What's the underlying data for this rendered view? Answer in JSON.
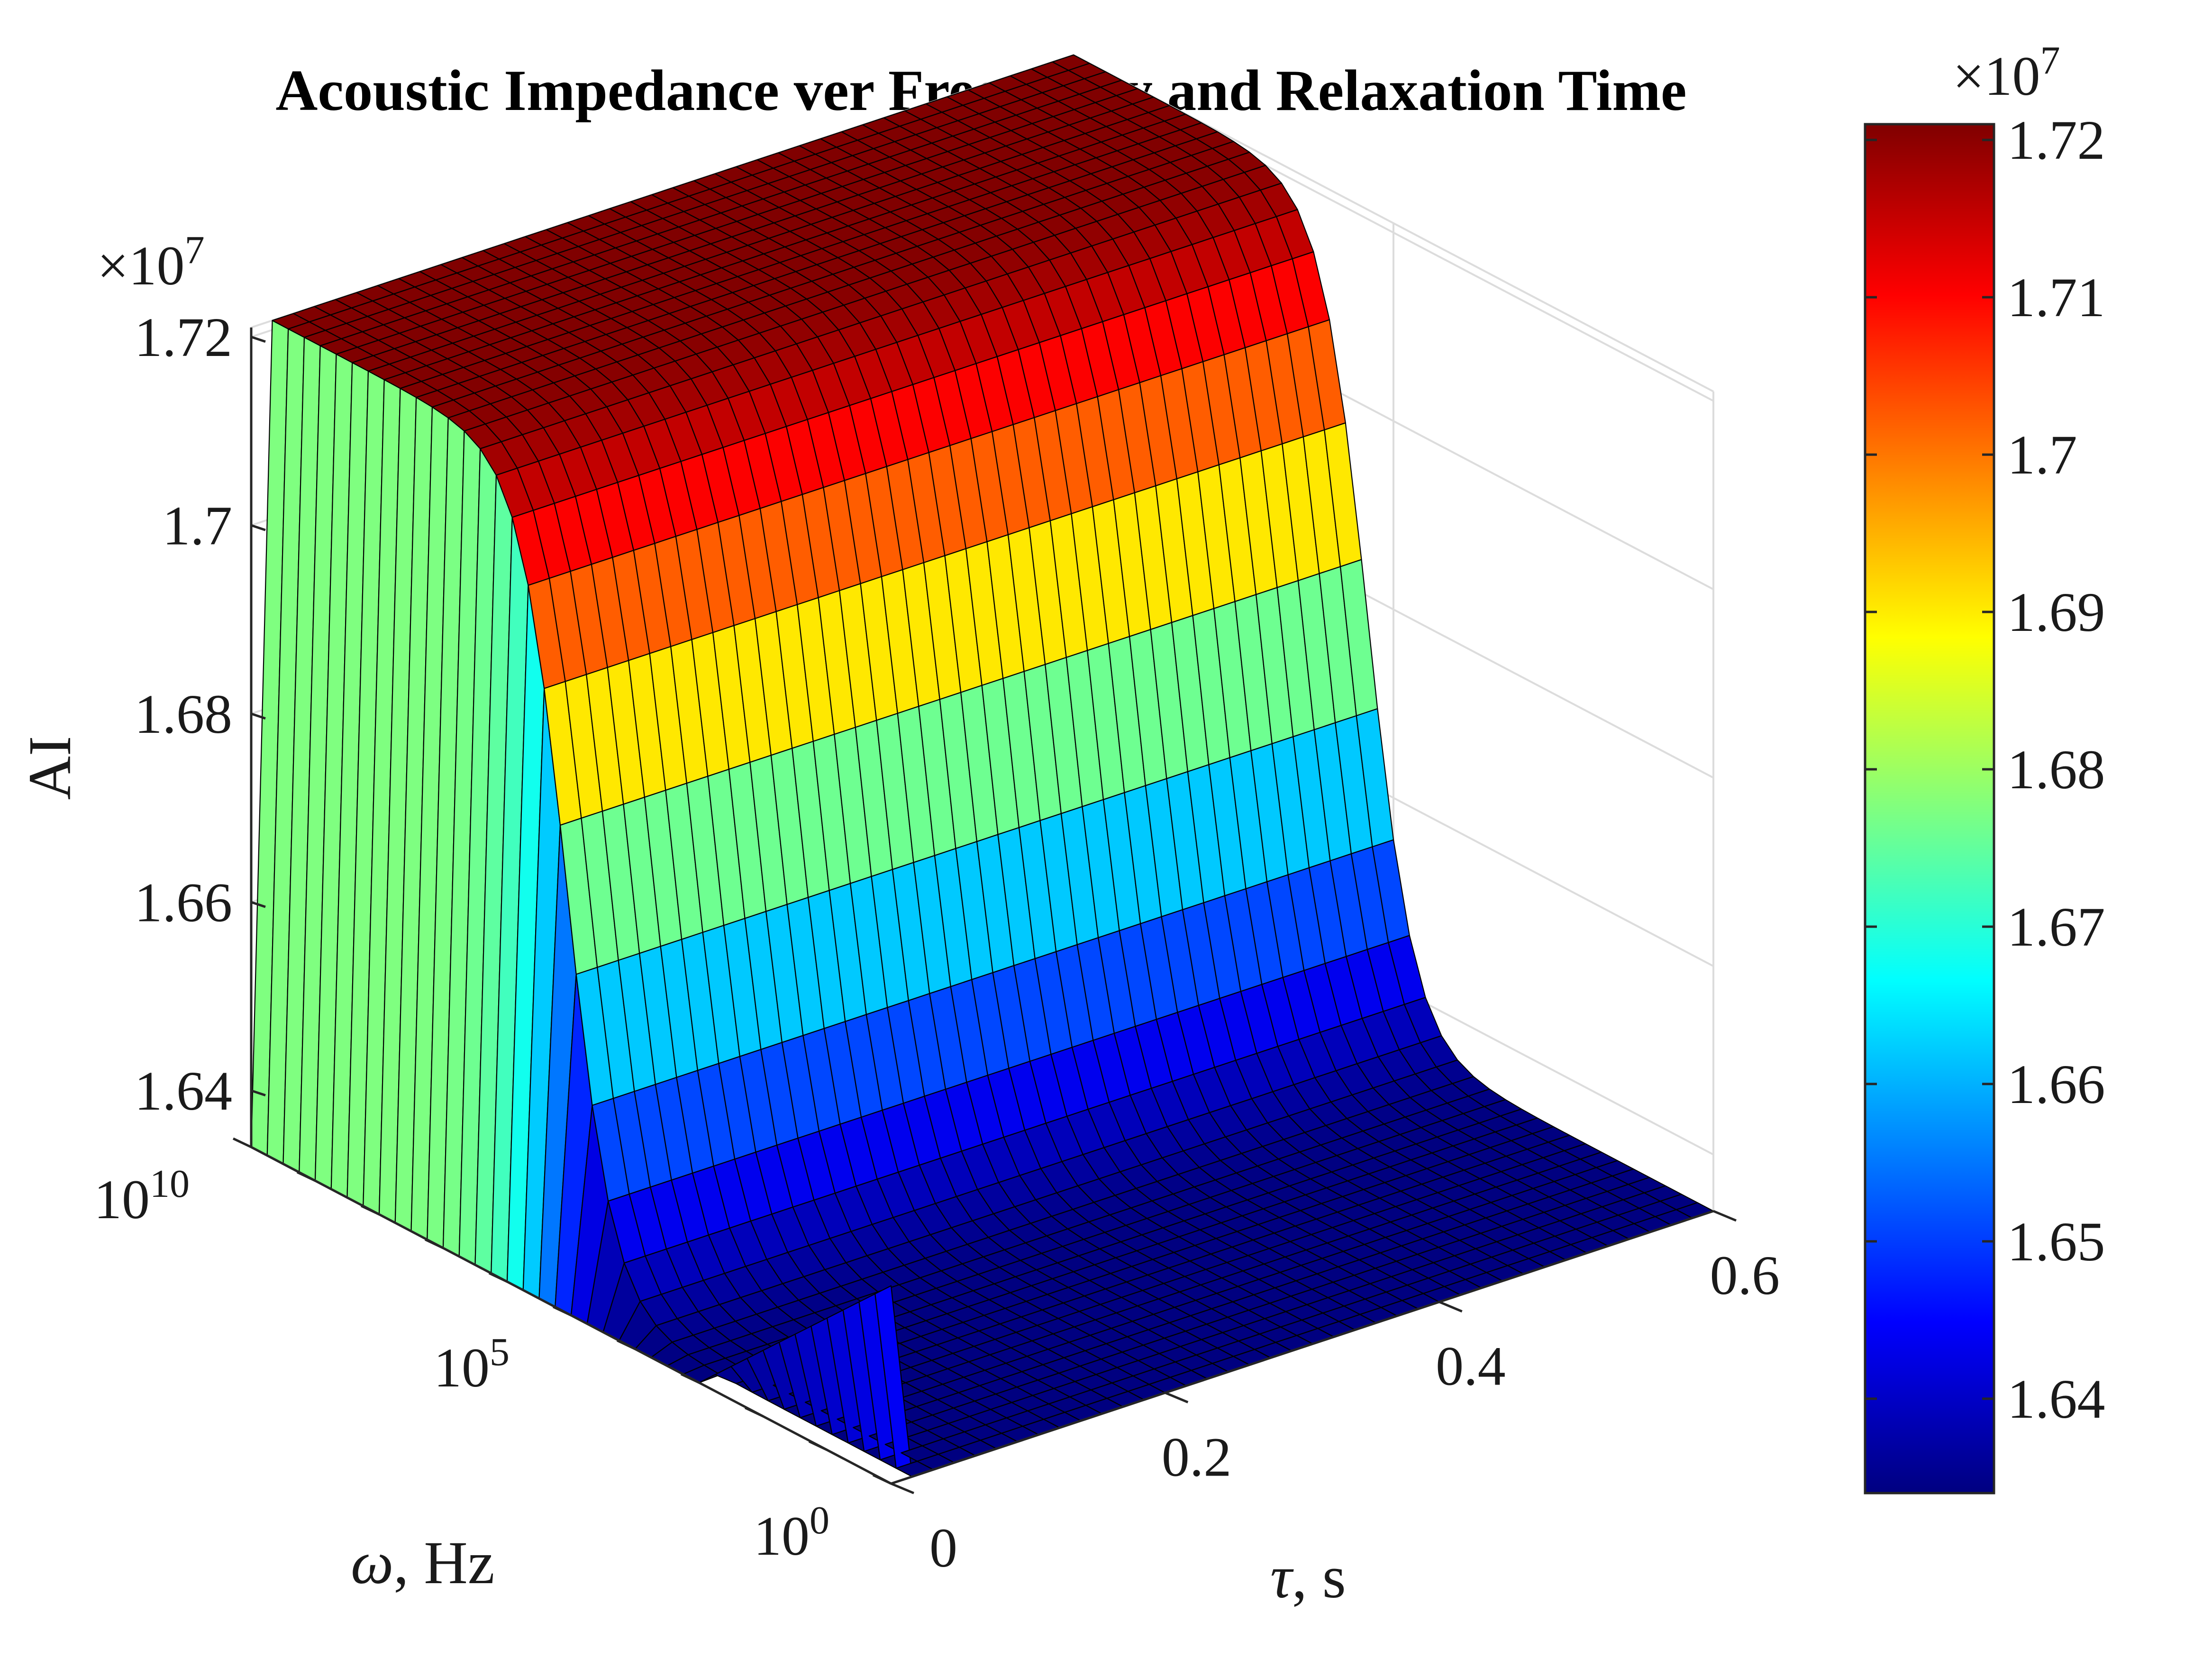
{
  "chart_data": {
    "type": "surface",
    "title": "Acoustic Impedance ver Frequency and Relaxation Time",
    "x_axis": {
      "label_symbol": "τ",
      "label_rest": ", s",
      "ticks": [
        0,
        0.2,
        0.4,
        0.6
      ],
      "tick_labels": [
        "0",
        "0.2",
        "0.4",
        "0.6"
      ],
      "range": [
        0,
        0.6
      ]
    },
    "y_axis": {
      "label_symbol": "ω",
      "label_rest": ", Hz",
      "scale": "log",
      "ticks": [
        1,
        100000,
        10000000000
      ],
      "tick_bases": [
        "10",
        "10",
        "10"
      ],
      "tick_exponents": [
        "0",
        "5",
        "10"
      ],
      "range": [
        1,
        10000000000
      ]
    },
    "z_axis": {
      "label": "AI",
      "multiplier_prefix": "×10",
      "multiplier_exp": "7",
      "ticks": [
        1.64,
        1.66,
        1.68,
        1.7,
        1.72
      ],
      "tick_labels": [
        "1.64",
        "1.66",
        "1.68",
        "1.7",
        "1.72"
      ],
      "range": [
        1.634,
        1.721
      ]
    },
    "colorbar": {
      "multiplier_prefix": "×10",
      "multiplier_exp": "7",
      "colormap": "jet",
      "range": [
        1.634,
        1.721
      ],
      "ticks": [
        1.64,
        1.65,
        1.66,
        1.67,
        1.68,
        1.69,
        1.7,
        1.71,
        1.72
      ],
      "tick_labels": [
        "1.64",
        "1.65",
        "1.66",
        "1.67",
        "1.68",
        "1.69",
        "1.7",
        "1.71",
        "1.72"
      ]
    },
    "surface_model": {
      "description_values": "AI rises from minimum to maximum as omega passes the relaxation frequency; nearly independent of tau except at tau = 0",
      "AI_min": 1.634,
      "AI_max": 1.721,
      "unit_multiplier": 10000000,
      "transition_log10_omega_center": 5.4,
      "transition_width": 0.36,
      "tau_grid": {
        "start": 0,
        "end": 0.6,
        "count": 40
      },
      "omega_log10_grid": {
        "start": 0,
        "end": 10,
        "count": 41
      },
      "edge_value_at_tau0": 1.655
    },
    "grid": true
  }
}
